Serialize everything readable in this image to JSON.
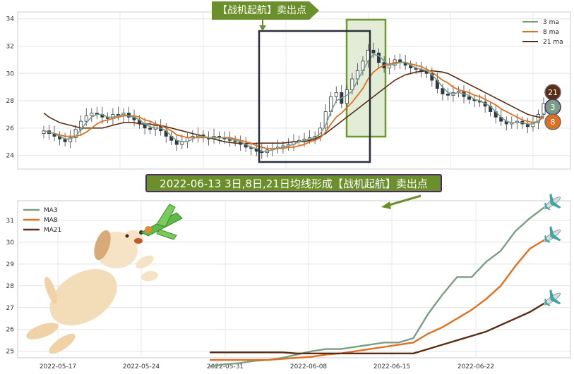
{
  "banner_top": "【战机起航】卖出点",
  "banner_mid": "2022-06-13 3日,8日,21日均线形成【战机起航】卖出点",
  "badges": {
    "ma21": "21",
    "ma3": "3",
    "ma8": "8"
  },
  "colors": {
    "ma3": "#7a9e85",
    "ma8": "#e07020",
    "ma21": "#5a2d14",
    "banner": "#6b8f2a",
    "box": "#2a2f3a",
    "highlight": "#e3ecd7"
  },
  "icons": [
    "dog-icon",
    "airplane-icon"
  ],
  "chart_data": [
    {
      "type": "candlestick",
      "legend": [
        "3 ma",
        "8 ma",
        "21 ma"
      ],
      "legend_position": "top-right",
      "ylim": [
        23,
        34.5
      ],
      "yticks": [
        24,
        26,
        28,
        30,
        32,
        34
      ],
      "close": [
        25.8,
        25.6,
        25.4,
        25.2,
        25.0,
        25.3,
        25.9,
        26.5,
        26.9,
        27.1,
        27.0,
        26.8,
        26.7,
        27.0,
        26.9,
        27.1,
        26.8,
        26.6,
        26.3,
        26.0,
        25.9,
        26.2,
        25.8,
        25.4,
        25.1,
        24.8,
        25.0,
        25.3,
        25.4,
        25.5,
        25.3,
        25.2,
        25.4,
        25.3,
        25.2,
        25.1,
        25.0,
        24.8,
        24.6,
        24.5,
        24.3,
        24.2,
        24.4,
        24.5,
        24.6,
        24.7,
        24.8,
        25.0,
        25.1,
        25.2,
        25.3,
        25.4,
        26.0,
        27.2,
        28.3,
        28.6,
        27.8,
        28.8,
        29.6,
        30.2,
        30.9,
        31.7,
        31.5,
        30.8,
        30.4,
        30.6,
        31.0,
        30.8,
        30.6,
        30.4,
        30.3,
        30.2,
        30.0,
        29.5,
        28.9,
        28.5,
        28.4,
        28.6,
        28.7,
        28.3,
        28.1,
        28.0,
        27.9,
        27.6,
        27.2,
        26.8,
        26.5,
        26.3,
        26.4,
        26.5,
        26.3,
        26.1,
        26.4,
        27.0,
        27.8
      ],
      "ma3": [
        25.8,
        25.7,
        25.6,
        25.4,
        25.2,
        25.2,
        25.4,
        25.9,
        26.4,
        26.8,
        27.0,
        27.0,
        26.8,
        26.8,
        26.9,
        27.0,
        26.9,
        26.8,
        26.6,
        26.3,
        26.1,
        26.0,
        26.0,
        25.8,
        25.4,
        25.1,
        25.0,
        25.0,
        25.2,
        25.4,
        25.4,
        25.3,
        25.3,
        25.3,
        25.3,
        25.2,
        25.1,
        25.0,
        24.8,
        24.6,
        24.5,
        24.3,
        24.3,
        24.4,
        24.5,
        24.6,
        24.7,
        24.8,
        25.0,
        25.1,
        25.2,
        25.3,
        25.6,
        26.2,
        27.2,
        28.0,
        28.2,
        28.4,
        28.7,
        29.5,
        30.2,
        30.9,
        31.4,
        31.3,
        30.9,
        30.6,
        30.7,
        30.8,
        30.8,
        30.6,
        30.4,
        30.3,
        30.2,
        29.9,
        29.5,
        29.0,
        28.6,
        28.5,
        28.6,
        28.5,
        28.4,
        28.1,
        28.0,
        27.8,
        27.6,
        27.2,
        26.8,
        26.5,
        26.4,
        26.4,
        26.4,
        26.3,
        26.3,
        26.5,
        27.1
      ],
      "ma8": [
        25.8,
        25.7,
        25.6,
        25.5,
        25.4,
        25.4,
        25.4,
        25.5,
        25.7,
        26.0,
        26.3,
        26.5,
        26.6,
        26.7,
        26.8,
        26.9,
        26.9,
        26.9,
        26.8,
        26.6,
        26.5,
        26.3,
        26.2,
        26.0,
        25.8,
        25.5,
        25.4,
        25.3,
        25.3,
        25.3,
        25.3,
        25.3,
        25.3,
        25.3,
        25.3,
        25.3,
        25.2,
        25.1,
        25.0,
        24.9,
        24.7,
        24.6,
        24.5,
        24.5,
        24.5,
        24.5,
        24.6,
        24.6,
        24.7,
        24.8,
        25.0,
        25.1,
        25.3,
        25.7,
        26.3,
        26.8,
        27.1,
        27.5,
        27.9,
        28.4,
        28.9,
        29.6,
        30.1,
        30.4,
        30.6,
        30.7,
        30.8,
        30.8,
        30.8,
        30.7,
        30.6,
        30.5,
        30.3,
        30.1,
        29.8,
        29.5,
        29.3,
        29.0,
        28.8,
        28.7,
        28.6,
        28.4,
        28.3,
        28.1,
        27.9,
        27.7,
        27.4,
        27.2,
        27.0,
        26.8,
        26.6,
        26.5,
        26.4,
        26.5,
        26.8
      ],
      "ma21": [
        27.1,
        26.8,
        26.6,
        26.4,
        26.3,
        26.2,
        26.1,
        26.0,
        26.0,
        26.0,
        26.0,
        26.0,
        26.1,
        26.2,
        26.3,
        26.4,
        26.4,
        26.4,
        26.3,
        26.3,
        26.3,
        26.2,
        26.2,
        26.1,
        26.0,
        25.9,
        25.8,
        25.7,
        25.6,
        25.5,
        25.4,
        25.3,
        25.2,
        25.1,
        25.0,
        24.95,
        24.9,
        24.88,
        24.87,
        24.87,
        24.88,
        24.9,
        24.9,
        24.9,
        24.9,
        24.9,
        24.95,
        25.0,
        25.0,
        25.0,
        25.1,
        25.2,
        25.4,
        25.6,
        25.9,
        26.2,
        26.5,
        26.8,
        27.1,
        27.4,
        27.7,
        28.0,
        28.3,
        28.6,
        28.9,
        29.2,
        29.5,
        29.7,
        29.9,
        30.0,
        30.1,
        30.15,
        30.2,
        30.2,
        30.15,
        30.1,
        30.0,
        29.8,
        29.6,
        29.4,
        29.2,
        29.0,
        28.8,
        28.6,
        28.4,
        28.2,
        28.0,
        27.8,
        27.6,
        27.4,
        27.2,
        27.0,
        26.9,
        26.8,
        26.8
      ]
    },
    {
      "type": "line",
      "legend": [
        "MA3",
        "MA8",
        "MA21"
      ],
      "legend_position": "top-left",
      "ylim": [
        24.7,
        31.9
      ],
      "yticks": [
        25,
        26,
        27,
        28,
        29,
        30,
        31
      ],
      "xticks": [
        "2022-05-17",
        "2022-05-24",
        "2022-05-31",
        "2022-06-08",
        "2022-06-15",
        "2022-06-22"
      ],
      "series": [
        {
          "name": "MA3",
          "values": [
            24.3,
            24.4,
            24.45,
            24.55,
            24.6,
            24.7,
            24.85,
            25.0,
            25.1,
            25.1,
            25.2,
            25.3,
            25.4,
            25.4,
            25.6,
            26.7,
            27.6,
            28.4,
            28.4,
            29.1,
            29.6,
            30.5,
            31.1,
            31.6
          ]
        },
        {
          "name": "MA8",
          "values": [
            24.6,
            24.6,
            24.6,
            24.6,
            24.6,
            24.65,
            24.7,
            24.75,
            24.85,
            24.9,
            25.0,
            25.1,
            25.2,
            25.3,
            25.4,
            25.8,
            26.1,
            26.5,
            26.9,
            27.4,
            28.0,
            28.9,
            29.7,
            30.1
          ]
        },
        {
          "name": "MA21",
          "values": [
            24.95,
            24.95,
            24.95,
            24.95,
            24.95,
            24.95,
            24.9,
            24.9,
            24.9,
            24.9,
            24.9,
            24.9,
            24.9,
            24.9,
            24.9,
            25.1,
            25.3,
            25.5,
            25.7,
            25.9,
            26.2,
            26.5,
            26.8,
            27.2
          ]
        }
      ]
    }
  ]
}
